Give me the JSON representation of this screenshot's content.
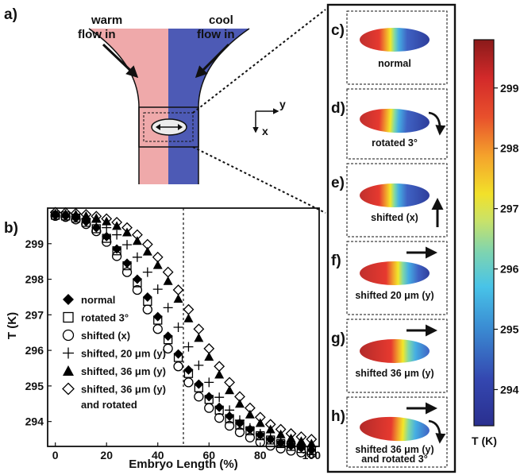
{
  "panel_a": {
    "tag": "a)",
    "warm_line1": "warm",
    "warm_line2": "flow in",
    "cool_line1": "cool",
    "cool_line2": "flow in",
    "axis_y": "y",
    "axis_x": "x",
    "colors": {
      "warm": "#efa9aa",
      "cool": "#4d5ab5"
    }
  },
  "panel_b": {
    "tag": "b)"
  },
  "right_panels": [
    {
      "tag": "c)",
      "caption1": "normal",
      "caption2": "",
      "arrows": []
    },
    {
      "tag": "d)",
      "caption1": "rotated 3°",
      "caption2": "",
      "arrows": [
        "rotate"
      ]
    },
    {
      "tag": "e)",
      "caption1": "shifted (x)",
      "caption2": "",
      "arrows": [
        "up"
      ]
    },
    {
      "tag": "f)",
      "caption1": "shifted 20 μm (y)",
      "caption2": "",
      "arrows": [
        "right"
      ]
    },
    {
      "tag": "g)",
      "caption1": "shifted 36 μm (y)",
      "caption2": "",
      "arrows": [
        "right"
      ]
    },
    {
      "tag": "h)",
      "caption1": "shifted 36 μm (y)",
      "caption2": "and rotated 3°",
      "arrows": [
        "right",
        "rotate"
      ]
    }
  ],
  "colorbar": {
    "unit_label": "T (K)",
    "ticks": [
      "294",
      "295",
      "296",
      "297",
      "298",
      "299"
    ],
    "range": [
      293.4,
      299.8
    ]
  },
  "chart_data": {
    "type": "scatter",
    "xlabel": "Embryo Length  (%)",
    "ylabel": "T (K)",
    "xlim": [
      -3,
      103
    ],
    "ylim": [
      293.3,
      300.0
    ],
    "xticks": [
      "0",
      "20",
      "40",
      "60",
      "80",
      "100"
    ],
    "yticks": [
      "294",
      "295",
      "296",
      "297",
      "298",
      "299"
    ],
    "vline_x": 50,
    "x": [
      0,
      4,
      8,
      12,
      16,
      20,
      24,
      28,
      32,
      36,
      40,
      44,
      48,
      52,
      56,
      60,
      64,
      68,
      72,
      76,
      80,
      84,
      88,
      92,
      96,
      100
    ],
    "series": [
      {
        "name": "normal",
        "marker": "diamond-filled",
        "values": [
          299.8,
          299.78,
          299.72,
          299.62,
          299.45,
          299.2,
          298.85,
          298.45,
          298.0,
          297.5,
          296.95,
          296.4,
          295.9,
          295.45,
          295.05,
          294.7,
          294.4,
          294.15,
          293.95,
          293.78,
          293.62,
          293.5,
          293.4,
          293.32,
          293.26,
          293.2
        ]
      },
      {
        "name": "rotated 3°",
        "marker": "square-open",
        "values": [
          299.8,
          299.78,
          299.72,
          299.6,
          299.42,
          299.15,
          298.8,
          298.38,
          297.9,
          297.38,
          296.85,
          296.3,
          295.8,
          295.35,
          294.95,
          294.62,
          294.32,
          294.08,
          293.9,
          293.74,
          293.6,
          293.48,
          293.38,
          293.3,
          293.24,
          293.18
        ]
      },
      {
        "name": "shifted (x)",
        "marker": "circle-open",
        "values": [
          299.78,
          299.75,
          299.68,
          299.55,
          299.35,
          299.05,
          298.65,
          298.2,
          297.7,
          297.15,
          296.6,
          296.05,
          295.55,
          295.1,
          294.7,
          294.38,
          294.1,
          293.88,
          293.7,
          293.55,
          293.42,
          293.32,
          293.24,
          293.18,
          293.13,
          293.1
        ]
      },
      {
        "name": "shifted, 20 μm (y)",
        "marker": "plus",
        "values": [
          299.82,
          299.8,
          299.76,
          299.7,
          299.6,
          299.45,
          299.25,
          298.97,
          298.62,
          298.2,
          297.72,
          297.2,
          296.65,
          296.1,
          295.58,
          295.1,
          294.68,
          294.32,
          294.04,
          293.82,
          293.66,
          293.54,
          293.45,
          293.38,
          293.33,
          293.28
        ]
      },
      {
        "name": "shifted, 36 μm (y)",
        "marker": "triangle-filled",
        "values": [
          299.85,
          299.84,
          299.82,
          299.78,
          299.72,
          299.63,
          299.5,
          299.32,
          299.08,
          298.78,
          298.4,
          297.95,
          297.45,
          296.9,
          296.35,
          295.82,
          295.32,
          294.88,
          294.5,
          294.2,
          293.96,
          293.78,
          293.64,
          293.53,
          293.45,
          293.38
        ]
      },
      {
        "name": "shifted, 36 μm (y)",
        "marker": "diamond-open",
        "values": [
          299.88,
          299.87,
          299.85,
          299.82,
          299.77,
          299.7,
          299.6,
          299.45,
          299.25,
          298.98,
          298.62,
          298.2,
          297.7,
          297.15,
          296.6,
          296.05,
          295.55,
          295.1,
          294.7,
          294.38,
          294.12,
          293.92,
          293.78,
          293.66,
          293.57,
          293.5
        ]
      }
    ],
    "legend_extra_line": "and rotated"
  }
}
